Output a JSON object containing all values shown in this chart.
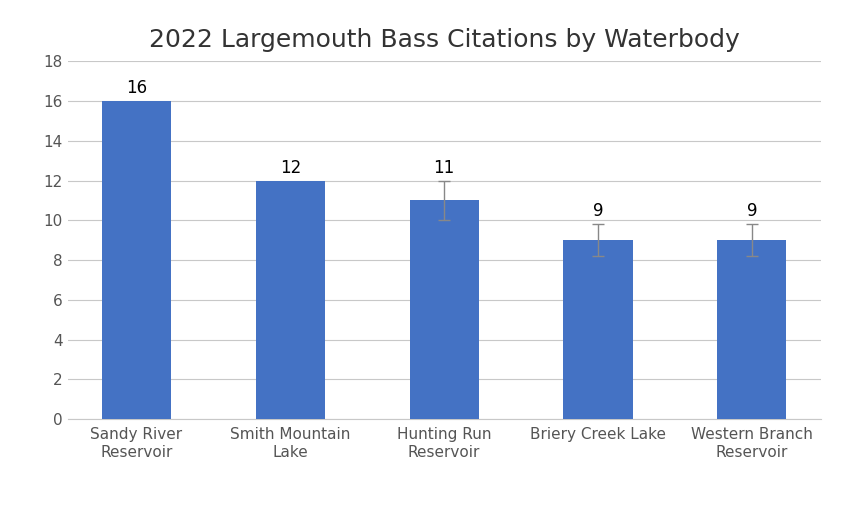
{
  "title": "2022 Largemouth Bass Citations by Waterbody",
  "categories": [
    "Sandy River\nReservoir",
    "Smith Mountain\nLake",
    "Hunting Run\nReservoir",
    "Briery Creek Lake",
    "Western Branch\nReservoir"
  ],
  "values": [
    16,
    12,
    11,
    9,
    9
  ],
  "error_bars": [
    0,
    0,
    1.0,
    0.8,
    0.8
  ],
  "bar_color": "#4472C4",
  "bar_width": 0.45,
  "ylim": [
    0,
    18
  ],
  "yticks": [
    0,
    2,
    4,
    6,
    8,
    10,
    12,
    14,
    16,
    18
  ],
  "title_fontsize": 18,
  "tick_fontsize": 11,
  "value_fontsize": 12,
  "background_color": "#ffffff",
  "grid_color": "#c8c8c8"
}
